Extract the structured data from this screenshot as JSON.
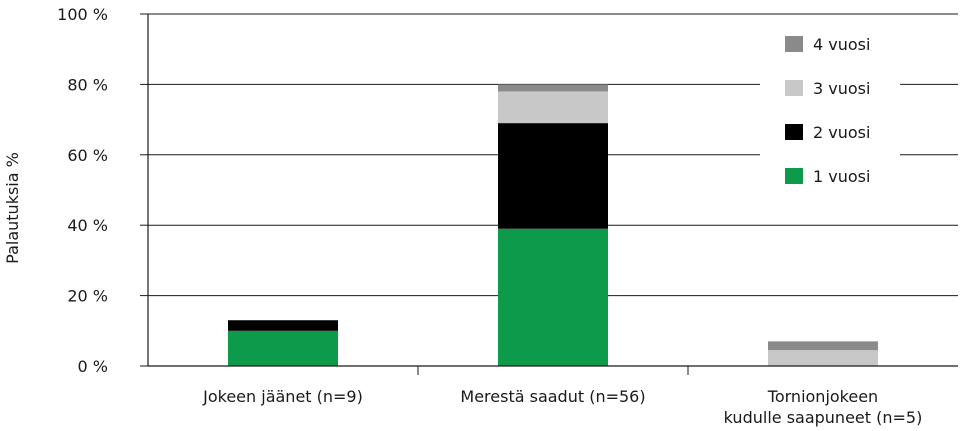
{
  "chart_data": {
    "type": "bar",
    "stacked": true,
    "ylabel": "Palautuksia %",
    "ylim": [
      0,
      100
    ],
    "yticks": [
      "0 %",
      "20 %",
      "40 %",
      "60 %",
      "80 %",
      "100 %"
    ],
    "categories": [
      [
        "Jokeen jäänet (n=9)"
      ],
      [
        "Merestä saadut (n=56)"
      ],
      [
        "Tornionjokeen",
        "kudulle saapuneet (n=5)"
      ]
    ],
    "series": [
      {
        "name": "1 vuosi",
        "color": "#0d9a4a",
        "values": [
          10,
          39,
          0
        ]
      },
      {
        "name": "2 vuosi",
        "color": "#000000",
        "values": [
          3,
          30,
          0
        ]
      },
      {
        "name": "3 vuosi",
        "color": "#c8c8c8",
        "values": [
          0,
          9,
          4.5
        ]
      },
      {
        "name": "4 vuosi",
        "color": "#8a8a8a",
        "values": [
          0,
          2,
          2.5
        ]
      }
    ],
    "legend_position": "top-right",
    "legend_order": [
      "4 vuosi",
      "3 vuosi",
      "2 vuosi",
      "1 vuosi"
    ],
    "grid": true
  }
}
